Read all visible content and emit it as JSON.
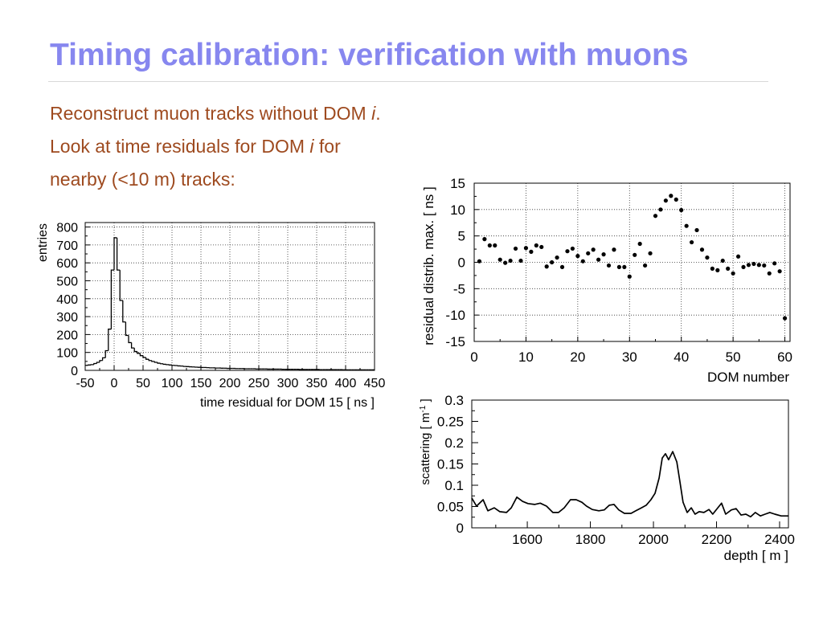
{
  "slide": {
    "title": "Timing calibration: verification with muons",
    "body": [
      {
        "pre": "Reconstruct muon tracks without DOM ",
        "em": "i",
        "post": "."
      },
      {
        "pre": "Look at time residuals for DOM ",
        "em": "i",
        "post": " for"
      },
      {
        "pre": "nearby (<10 m) tracks:"
      }
    ]
  },
  "colors": {
    "title": "#8787ef",
    "body": "#9e4a1f",
    "rule": "#d9d9d9",
    "marks": "#000000"
  },
  "chart_data": [
    {
      "type": "bar",
      "histogram": true,
      "xlabel": "time residual for DOM 15 [ ns ]",
      "ylabel": "entries",
      "xlim": [
        -50,
        450
      ],
      "ylim": [
        0,
        825
      ],
      "xticks": [
        -50,
        0,
        50,
        100,
        150,
        200,
        250,
        300,
        350,
        400,
        450
      ],
      "yticks": [
        0,
        100,
        200,
        300,
        400,
        500,
        600,
        700,
        800
      ],
      "grid": true,
      "x": [
        -50,
        -45,
        -40,
        -35,
        -30,
        -25,
        -20,
        -15,
        -10,
        -5,
        0,
        5,
        10,
        15,
        20,
        25,
        30,
        35,
        40,
        45,
        50,
        55,
        60,
        65,
        70,
        75,
        80,
        85,
        90,
        95,
        100,
        105,
        110,
        115,
        120,
        125,
        130,
        135,
        140,
        145,
        150,
        155,
        160,
        165,
        170,
        175,
        180,
        185,
        190,
        195,
        200,
        205,
        210,
        215,
        220,
        225,
        230,
        235,
        240,
        245,
        250,
        255,
        260,
        265,
        270,
        275,
        280,
        285,
        290,
        295,
        300,
        305,
        310,
        315,
        320,
        325,
        330,
        335,
        340,
        345,
        350,
        355,
        360,
        365,
        370,
        375,
        380,
        385,
        390,
        395,
        400,
        405,
        410,
        415,
        420,
        425,
        430,
        435,
        440,
        445
      ],
      "values": [
        28,
        30,
        32,
        38,
        45,
        55,
        70,
        110,
        230,
        560,
        740,
        560,
        390,
        270,
        195,
        155,
        125,
        105,
        95,
        82,
        72,
        62,
        55,
        50,
        45,
        40,
        37,
        34,
        32,
        30,
        28,
        27,
        25,
        24,
        22,
        21,
        20,
        19,
        18,
        17,
        16,
        16,
        15,
        14,
        14,
        13,
        13,
        12,
        12,
        11,
        11,
        11,
        10,
        10,
        10,
        9,
        9,
        9,
        9,
        8,
        8,
        8,
        8,
        7,
        7,
        7,
        7,
        7,
        6,
        6,
        6,
        6,
        6,
        6,
        5,
        5,
        5,
        5,
        5,
        5,
        5,
        4,
        4,
        4,
        4,
        4,
        4,
        4,
        4,
        3,
        3,
        3,
        3,
        3,
        3,
        3,
        3,
        3,
        3,
        3
      ]
    },
    {
      "type": "scatter",
      "xlabel": "DOM number",
      "ylabel": "residual distrib. max. [ ns ]",
      "xlim": [
        0,
        61
      ],
      "ylim": [
        -15,
        15
      ],
      "xticks": [
        0,
        10,
        20,
        30,
        40,
        50,
        60
      ],
      "yticks": [
        -15,
        -10,
        -5,
        0,
        5,
        10,
        15
      ],
      "grid": true,
      "x": [
        1,
        2,
        3,
        4,
        5,
        6,
        7,
        8,
        9,
        10,
        11,
        12,
        13,
        14,
        15,
        16,
        17,
        18,
        19,
        20,
        21,
        22,
        23,
        24,
        25,
        26,
        27,
        28,
        29,
        30,
        31,
        32,
        33,
        34,
        35,
        36,
        37,
        38,
        39,
        40,
        41,
        42,
        43,
        44,
        45,
        46,
        47,
        48,
        49,
        50,
        51,
        52,
        53,
        54,
        55,
        56,
        57,
        58,
        59,
        60
      ],
      "y": [
        0.2,
        4.4,
        3.2,
        3.2,
        0.5,
        -0.1,
        0.3,
        2.6,
        0.3,
        2.7,
        2.0,
        3.2,
        2.9,
        -0.8,
        0.0,
        0.9,
        -0.9,
        2.1,
        2.6,
        1.2,
        0.2,
        1.7,
        2.4,
        0.5,
        1.5,
        -0.6,
        2.4,
        -0.9,
        -0.9,
        -2.7,
        1.4,
        3.5,
        -0.6,
        1.7,
        8.8,
        10.0,
        11.7,
        12.6,
        11.9,
        9.9,
        6.9,
        3.8,
        6.1,
        2.4,
        0.9,
        -1.2,
        -1.5,
        0.3,
        -1.2,
        -2.1,
        1.1,
        -0.9,
        -0.5,
        -0.3,
        -0.5,
        -0.6,
        -2.1,
        -0.2,
        -1.7,
        -10.6
      ]
    },
    {
      "type": "line",
      "xlabel": "depth [ m ]",
      "ylabel": {
        "text": "scattering [ m",
        "sup": "-1",
        "close": " ]"
      },
      "xlim": [
        1424,
        2428
      ],
      "ylim": [
        0,
        0.3
      ],
      "xticks": [
        1600,
        1800,
        2000,
        2200,
        2400
      ],
      "yticks": [
        0,
        0.05,
        0.1,
        0.15,
        0.2,
        0.25,
        0.3
      ],
      "grid": false,
      "x": [
        1424,
        1439,
        1460,
        1475,
        1495,
        1513,
        1534,
        1549,
        1567,
        1585,
        1602,
        1623,
        1641,
        1661,
        1681,
        1699,
        1717,
        1737,
        1755,
        1773,
        1788,
        1806,
        1827,
        1844,
        1860,
        1875,
        1890,
        1908,
        1929,
        1944,
        1962,
        1977,
        1992,
        2005,
        2018,
        2028,
        2038,
        2048,
        2061,
        2074,
        2084,
        2094,
        2107,
        2120,
        2132,
        2145,
        2160,
        2176,
        2188,
        2204,
        2216,
        2229,
        2247,
        2262,
        2278,
        2293,
        2308,
        2323,
        2339,
        2354,
        2369,
        2385,
        2405,
        2428
      ],
      "y": [
        0.07,
        0.051,
        0.066,
        0.04,
        0.047,
        0.038,
        0.036,
        0.047,
        0.072,
        0.062,
        0.057,
        0.055,
        0.058,
        0.051,
        0.036,
        0.036,
        0.047,
        0.066,
        0.066,
        0.06,
        0.051,
        0.043,
        0.04,
        0.042,
        0.053,
        0.055,
        0.042,
        0.034,
        0.034,
        0.04,
        0.047,
        0.053,
        0.066,
        0.081,
        0.117,
        0.164,
        0.174,
        0.16,
        0.179,
        0.155,
        0.108,
        0.06,
        0.036,
        0.047,
        0.032,
        0.038,
        0.036,
        0.043,
        0.032,
        0.047,
        0.058,
        0.032,
        0.042,
        0.045,
        0.03,
        0.032,
        0.026,
        0.036,
        0.028,
        0.032,
        0.036,
        0.032,
        0.028,
        0.028
      ]
    }
  ]
}
